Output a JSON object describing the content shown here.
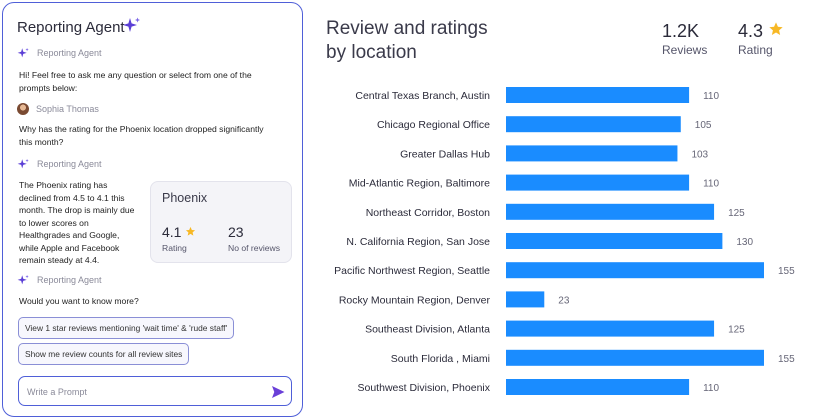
{
  "agent": {
    "title": "Reporting Agent",
    "agent_name": "Reporting Agent",
    "user_name": "Sophia Thomas",
    "greeting": "Hi! Feel free to ask me any question or select from one of the prompts below:",
    "question": "Why has the rating for the Phoenix location dropped significantly this month?",
    "answer": "The Phoenix rating has declined from 4.5 to 4.1 this month. The drop is mainly due to lower scores on Healthgrades and Google, while Apple and Facebook remain steady at 4.4.",
    "card": {
      "name": "Phoenix",
      "rating_value": "4.1",
      "rating_label": "Rating",
      "reviews_value": "23",
      "reviews_label": "No of reviews"
    },
    "follow_up": "Would you want to know more?",
    "prompts": [
      "View 1 star reviews mentioning 'wait time' & 'rude staff'",
      "Show me review counts for all review sites"
    ],
    "input_placeholder": "Write a Prompt",
    "colors": {
      "accent": "#4f5fd8",
      "sparkle": "#5b3fd6"
    }
  },
  "report": {
    "title_line1": "Review and ratings",
    "title_line2": "by location",
    "reviews_total": "1.2K",
    "reviews_label": "Reviews",
    "rating_total": "4.3",
    "rating_label": "Rating",
    "star_color": "#f7b825"
  },
  "chart_data": {
    "type": "bar",
    "orientation": "horizontal",
    "bar_color": "#1a8cff",
    "xlim": [
      0,
      155
    ],
    "grid": false,
    "categories": [
      "Central Texas Branch, Austin",
      "Chicago Regional Office",
      "Greater Dallas Hub",
      "Mid-Atlantic Region, Baltimore",
      "Northeast Corridor, Boston",
      "N. California Region, San Jose",
      "Pacific Northwest Region, Seattle",
      "Rocky Mountain Region, Denver",
      "Southeast Division, Atlanta",
      "South Florida , Miami",
      "Southwest Division, Phoenix"
    ],
    "values": [
      110,
      105,
      103,
      110,
      125,
      130,
      155,
      23,
      125,
      155,
      110
    ]
  }
}
